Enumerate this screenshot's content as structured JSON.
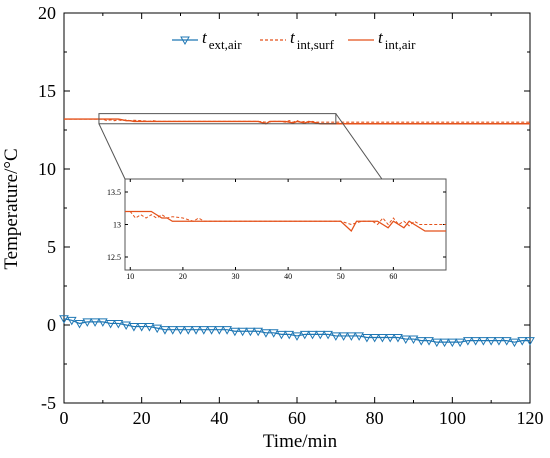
{
  "chart_data": {
    "type": "line",
    "xlabel": "Time/min",
    "ylabel": "Temperature/°C",
    "xlim": [
      0,
      120
    ],
    "ylim": [
      -5,
      20
    ],
    "xticks": [
      "0",
      "20",
      "40",
      "60",
      "80",
      "100",
      "120"
    ],
    "yticks": [
      "-5",
      "0",
      "5",
      "10",
      "15",
      "20"
    ],
    "grid": false,
    "legend_position": "top-center",
    "legend": [
      {
        "main": "t",
        "sub": "ext,air"
      },
      {
        "main": "t",
        "sub": "int,surf"
      },
      {
        "main": "t",
        "sub": "int,air"
      }
    ],
    "colors": {
      "ext_air": "#1f77b4",
      "int_surf": "#e4521b",
      "int_air": "#e4521b"
    },
    "series": [
      {
        "key": "ext_air",
        "marker": "triangle-down",
        "x": [
          0,
          2,
          4,
          6,
          8,
          10,
          12,
          14,
          16,
          18,
          20,
          22,
          24,
          26,
          28,
          30,
          32,
          34,
          36,
          38,
          40,
          42,
          44,
          46,
          48,
          50,
          52,
          54,
          56,
          58,
          60,
          62,
          64,
          66,
          68,
          70,
          72,
          74,
          76,
          78,
          80,
          82,
          84,
          86,
          88,
          90,
          92,
          94,
          96,
          98,
          100,
          102,
          104,
          106,
          108,
          110,
          112,
          114,
          116,
          118,
          120
        ],
        "y": [
          0.4,
          0.3,
          0.1,
          0.2,
          0.2,
          0.2,
          0.1,
          0.1,
          0.0,
          -0.1,
          -0.1,
          -0.1,
          -0.2,
          -0.3,
          -0.3,
          -0.3,
          -0.3,
          -0.3,
          -0.3,
          -0.3,
          -0.3,
          -0.3,
          -0.4,
          -0.4,
          -0.4,
          -0.4,
          -0.5,
          -0.5,
          -0.6,
          -0.6,
          -0.7,
          -0.6,
          -0.6,
          -0.6,
          -0.6,
          -0.7,
          -0.7,
          -0.7,
          -0.7,
          -0.8,
          -0.8,
          -0.8,
          -0.8,
          -0.8,
          -0.9,
          -0.9,
          -1.0,
          -1.0,
          -1.1,
          -1.1,
          -1.1,
          -1.1,
          -1.0,
          -1.0,
          -1.0,
          -1.0,
          -1.0,
          -1.0,
          -1.1,
          -1.0,
          -1.0
        ]
      },
      {
        "key": "int_surf",
        "style": "dashed",
        "x": [
          0,
          10,
          11,
          12,
          13,
          14,
          15,
          16,
          17,
          18,
          20,
          22,
          23,
          24,
          30,
          40,
          50,
          52,
          54,
          56,
          57,
          58,
          59,
          60,
          61,
          62,
          63,
          64,
          65,
          66,
          120
        ],
        "y": [
          13.2,
          13.2,
          13.1,
          13.15,
          13.1,
          13.15,
          13.1,
          13.15,
          13.1,
          13.12,
          13.1,
          13.05,
          13.1,
          13.05,
          13.05,
          13.05,
          13.05,
          13.0,
          13.05,
          13.05,
          13.0,
          13.1,
          13.0,
          13.1,
          13.0,
          13.05,
          12.98,
          13.05,
          13.0,
          13.0,
          13.0
        ]
      },
      {
        "key": "int_air",
        "style": "solid",
        "x": [
          0,
          10,
          14,
          15,
          16,
          17,
          18,
          30,
          40,
          50,
          52,
          53,
          55,
          57,
          58,
          59,
          60,
          61,
          62,
          63,
          64,
          65,
          66,
          120
        ],
        "y": [
          13.2,
          13.2,
          13.2,
          13.15,
          13.1,
          13.1,
          13.05,
          13.05,
          13.05,
          13.05,
          12.9,
          13.05,
          13.05,
          13.05,
          13.0,
          12.95,
          13.05,
          13.0,
          12.95,
          13.05,
          13.0,
          12.95,
          12.9,
          12.9
        ]
      }
    ],
    "inset": {
      "xlim": [
        9,
        70
      ],
      "ylim": [
        12.3,
        13.7
      ],
      "xticks": [
        "10",
        "20",
        "30",
        "40",
        "50",
        "60"
      ],
      "yticks": [
        "12.5",
        "13",
        "13.5"
      ],
      "zoom_region": {
        "xlim": [
          9,
          70
        ],
        "ylim": [
          12.9,
          13.55
        ]
      }
    }
  }
}
